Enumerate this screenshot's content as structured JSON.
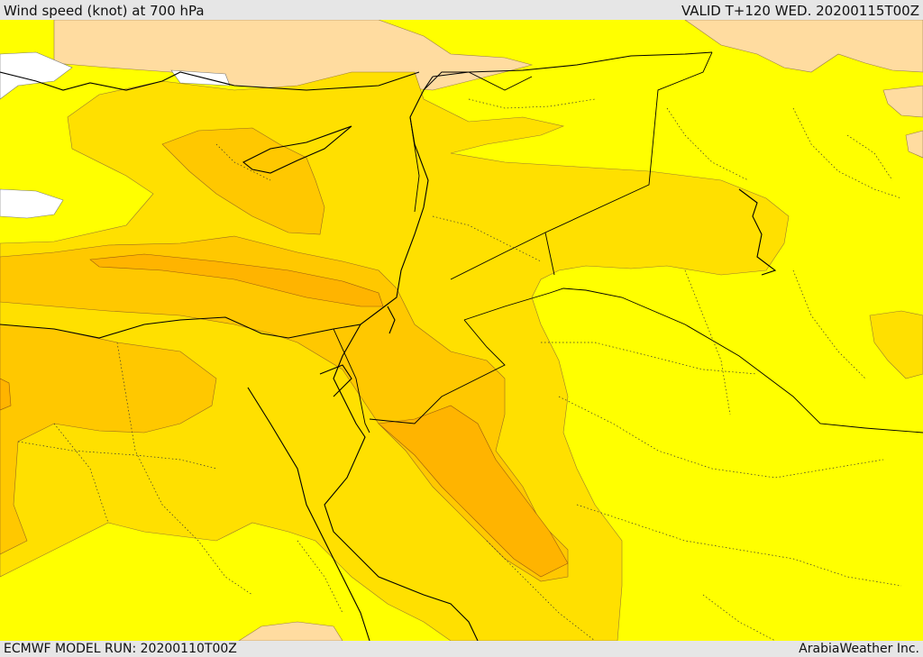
{
  "header": {
    "title": "Wind speed (knot) at 700 hPa",
    "valid": "VALID T+120 WED. 20200115T00Z"
  },
  "footer": {
    "model_run": "ECMWF MODEL RUN: 20200110T00Z",
    "credit": "ArabiaWeather Inc."
  },
  "colors": {
    "calm": "#ffffff",
    "light": "#ffff00",
    "moderate": "#ffe000",
    "fresh": "#ffc800",
    "strong": "#ffb400",
    "very_strong": "#ffa000",
    "land_high": "#ffdca0",
    "coastline": "#000000",
    "border": "#000000"
  }
}
